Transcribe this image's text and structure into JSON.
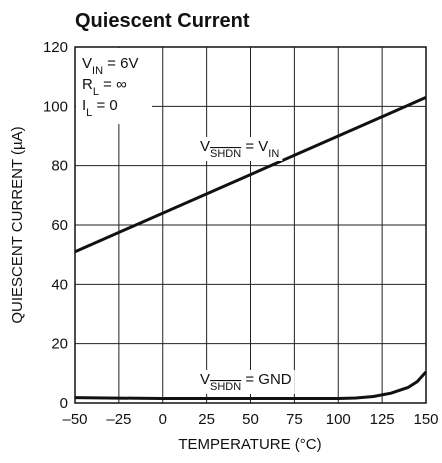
{
  "chart_data": {
    "type": "line",
    "title": "Quiescent Current",
    "xlabel": "TEMPERATURE (°C)",
    "ylabel": "QUIESCENT CURRENT (µA)",
    "xlim": [
      -50,
      150
    ],
    "xticks": [
      {
        "value": -50,
        "label": "–50"
      },
      {
        "value": -25,
        "label": "–25"
      },
      0,
      25,
      50,
      75,
      100,
      125,
      150
    ],
    "ylim": [
      0,
      120
    ],
    "yticks": [
      0,
      20,
      40,
      60,
      80,
      100,
      120
    ],
    "grid": true,
    "conditions": [
      [
        {
          "text": "V"
        },
        {
          "text": "IN",
          "sub": true
        },
        {
          "text": " = 6V"
        }
      ],
      [
        {
          "text": "R"
        },
        {
          "text": "L",
          "sub": true
        },
        {
          "text": " = ∞"
        }
      ],
      [
        {
          "text": "I"
        },
        {
          "text": "L",
          "sub": true
        },
        {
          "text": " = 0"
        }
      ]
    ],
    "series": [
      {
        "color": "#111111",
        "label": [
          {
            "text": "V"
          },
          {
            "text": "SHDN",
            "sub": true,
            "overline": true
          },
          {
            "text": " = V"
          },
          {
            "text": "IN",
            "sub": true
          }
        ],
        "x": [
          -50,
          150
        ],
        "values": [
          51,
          103
        ]
      },
      {
        "color": "#111111",
        "label": [
          {
            "text": "V"
          },
          {
            "text": "SHDN",
            "sub": true,
            "overline": true
          },
          {
            "text": " = GND"
          }
        ],
        "x": [
          -50,
          0,
          50,
          100,
          110,
          120,
          130,
          140,
          145,
          150
        ],
        "values": [
          1.8,
          1.5,
          1.5,
          1.5,
          1.7,
          2.2,
          3.3,
          5.3,
          7.2,
          10.5
        ]
      }
    ]
  }
}
